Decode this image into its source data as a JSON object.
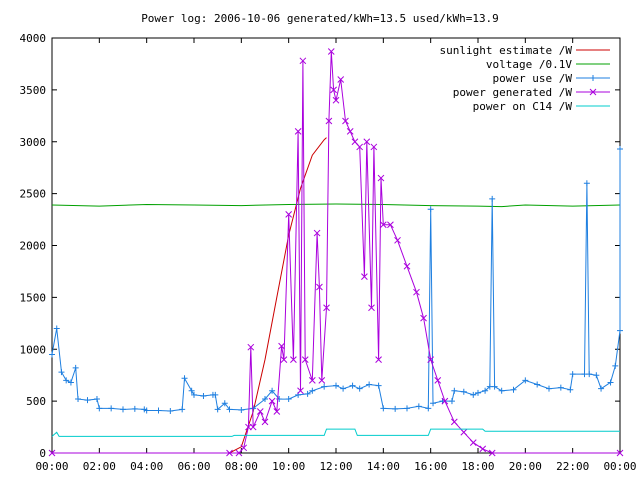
{
  "chart_data": {
    "type": "line",
    "title": "Power log: 2006-10-06 generated/kWh=13.5 used/kWh=13.9",
    "xlabel": "",
    "ylabel": "",
    "xlim_hours": [
      0,
      24
    ],
    "ylim": [
      0,
      4000
    ],
    "x_tick_labels": [
      "00:00",
      "02:00",
      "04:00",
      "06:00",
      "08:00",
      "10:00",
      "12:00",
      "14:00",
      "16:00",
      "18:00",
      "20:00",
      "22:00",
      "00:00"
    ],
    "x_tick_hours": [
      0,
      2,
      4,
      6,
      8,
      10,
      12,
      14,
      16,
      18,
      20,
      22,
      24
    ],
    "y_ticks": [
      0,
      500,
      1000,
      1500,
      2000,
      2500,
      3000,
      3500,
      4000
    ],
    "grid": false,
    "legend_position": "top-right",
    "series": [
      {
        "name": "sunlight estimate /W",
        "color": "#cc0000",
        "marker": "none",
        "points": [
          [
            0,
            0
          ],
          [
            7.5,
            0
          ],
          [
            8.0,
            60
          ],
          [
            8.5,
            400
          ],
          [
            9.0,
            900
          ],
          [
            9.5,
            1500
          ],
          [
            10.0,
            2100
          ],
          [
            10.5,
            2550
          ],
          [
            11.0,
            2870
          ],
          [
            11.5,
            3020
          ],
          [
            11.6,
            3040
          ]
        ]
      },
      {
        "name": "voltage /0.1V",
        "color": "#00a000",
        "marker": "none",
        "points": [
          [
            0,
            2390
          ],
          [
            2,
            2380
          ],
          [
            4,
            2395
          ],
          [
            6,
            2390
          ],
          [
            8,
            2385
          ],
          [
            10,
            2395
          ],
          [
            12,
            2400
          ],
          [
            14,
            2395
          ],
          [
            16,
            2385
          ],
          [
            18,
            2380
          ],
          [
            19,
            2375
          ],
          [
            20,
            2390
          ],
          [
            22,
            2380
          ],
          [
            24,
            2390
          ]
        ]
      },
      {
        "name": "power use /W",
        "color": "#1e7fe0",
        "marker": "plus",
        "points": [
          [
            0,
            950
          ],
          [
            0.2,
            1200
          ],
          [
            0.4,
            780
          ],
          [
            0.6,
            700
          ],
          [
            0.8,
            680
          ],
          [
            1.0,
            820
          ],
          [
            1.1,
            520
          ],
          [
            1.5,
            510
          ],
          [
            1.9,
            520
          ],
          [
            2.0,
            430
          ],
          [
            2.5,
            430
          ],
          [
            3.0,
            420
          ],
          [
            3.5,
            425
          ],
          [
            3.9,
            420
          ],
          [
            4.0,
            410
          ],
          [
            4.5,
            410
          ],
          [
            5.0,
            405
          ],
          [
            5.5,
            420
          ],
          [
            5.6,
            720
          ],
          [
            5.9,
            600
          ],
          [
            6.0,
            560
          ],
          [
            6.4,
            550
          ],
          [
            6.8,
            560
          ],
          [
            6.9,
            560
          ],
          [
            7.0,
            420
          ],
          [
            7.3,
            480
          ],
          [
            7.5,
            420
          ],
          [
            8.0,
            415
          ],
          [
            8.5,
            430
          ],
          [
            9.0,
            520
          ],
          [
            9.3,
            600
          ],
          [
            9.6,
            520
          ],
          [
            10.0,
            520
          ],
          [
            10.4,
            560
          ],
          [
            10.8,
            570
          ],
          [
            11.0,
            600
          ],
          [
            11.5,
            640
          ],
          [
            12.0,
            650
          ],
          [
            12.3,
            620
          ],
          [
            12.7,
            650
          ],
          [
            13.0,
            620
          ],
          [
            13.4,
            660
          ],
          [
            13.8,
            650
          ],
          [
            14.0,
            430
          ],
          [
            14.5,
            425
          ],
          [
            15.0,
            430
          ],
          [
            15.5,
            450
          ],
          [
            15.9,
            430
          ],
          [
            16.0,
            2350
          ],
          [
            16.1,
            480
          ],
          [
            16.5,
            500
          ],
          [
            16.9,
            500
          ],
          [
            17.0,
            600
          ],
          [
            17.4,
            590
          ],
          [
            17.8,
            560
          ],
          [
            18.0,
            580
          ],
          [
            18.3,
            600
          ],
          [
            18.5,
            640
          ],
          [
            18.6,
            2450
          ],
          [
            18.7,
            640
          ],
          [
            19.0,
            600
          ],
          [
            19.5,
            610
          ],
          [
            20.0,
            700
          ],
          [
            20.5,
            660
          ],
          [
            21.0,
            620
          ],
          [
            21.5,
            630
          ],
          [
            21.9,
            610
          ],
          [
            22.0,
            760
          ],
          [
            22.5,
            760
          ],
          [
            22.6,
            2600
          ],
          [
            22.7,
            760
          ],
          [
            23.0,
            750
          ],
          [
            23.2,
            620
          ],
          [
            23.6,
            680
          ],
          [
            23.8,
            840
          ],
          [
            24.0,
            1180
          ],
          [
            24.0,
            2930
          ]
        ]
      },
      {
        "name": "power generated /W",
        "color": "#aa00dd",
        "marker": "x",
        "points": [
          [
            0,
            0
          ],
          [
            7.5,
            0
          ],
          [
            7.9,
            0
          ],
          [
            8.1,
            50
          ],
          [
            8.3,
            250
          ],
          [
            8.4,
            1020
          ],
          [
            8.5,
            250
          ],
          [
            8.8,
            400
          ],
          [
            9.0,
            300
          ],
          [
            9.3,
            500
          ],
          [
            9.5,
            400
          ],
          [
            9.7,
            1030
          ],
          [
            9.8,
            900
          ],
          [
            10.0,
            2300
          ],
          [
            10.2,
            900
          ],
          [
            10.4,
            3100
          ],
          [
            10.5,
            600
          ],
          [
            10.6,
            3780
          ],
          [
            10.7,
            900
          ],
          [
            11.0,
            700
          ],
          [
            11.2,
            2120
          ],
          [
            11.3,
            1600
          ],
          [
            11.4,
            700
          ],
          [
            11.6,
            1400
          ],
          [
            11.7,
            3200
          ],
          [
            11.8,
            3870
          ],
          [
            11.9,
            3500
          ],
          [
            12.0,
            3400
          ],
          [
            12.2,
            3600
          ],
          [
            12.4,
            3200
          ],
          [
            12.6,
            3100
          ],
          [
            12.8,
            3000
          ],
          [
            13.0,
            2950
          ],
          [
            13.2,
            1700
          ],
          [
            13.3,
            3000
          ],
          [
            13.5,
            1400
          ],
          [
            13.6,
            2950
          ],
          [
            13.8,
            900
          ],
          [
            13.9,
            2650
          ],
          [
            14.0,
            2200
          ],
          [
            14.3,
            2200
          ],
          [
            14.6,
            2050
          ],
          [
            15.0,
            1800
          ],
          [
            15.4,
            1550
          ],
          [
            15.7,
            1300
          ],
          [
            16.0,
            900
          ],
          [
            16.3,
            700
          ],
          [
            16.6,
            500
          ],
          [
            17.0,
            300
          ],
          [
            17.4,
            200
          ],
          [
            17.8,
            100
          ],
          [
            18.2,
            40
          ],
          [
            18.6,
            0
          ],
          [
            24,
            0
          ]
        ]
      },
      {
        "name": "power on C14 /W",
        "color": "#00cccc",
        "marker": "none",
        "points": [
          [
            0,
            160
          ],
          [
            0.2,
            200
          ],
          [
            0.3,
            160
          ],
          [
            7.6,
            160
          ],
          [
            7.7,
            170
          ],
          [
            11.5,
            170
          ],
          [
            11.6,
            230
          ],
          [
            12.8,
            230
          ],
          [
            12.9,
            170
          ],
          [
            15.9,
            170
          ],
          [
            16.0,
            230
          ],
          [
            18.2,
            230
          ],
          [
            18.3,
            210
          ],
          [
            24,
            210
          ]
        ]
      }
    ]
  }
}
